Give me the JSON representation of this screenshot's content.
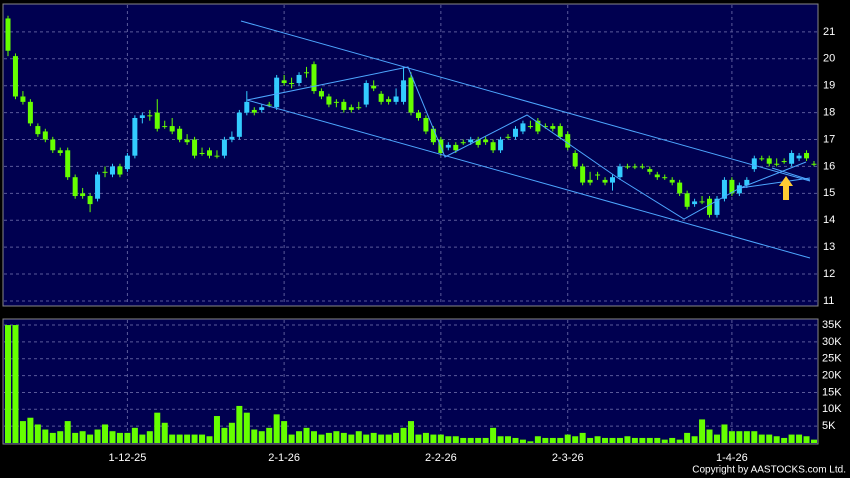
{
  "chart_data": {
    "type": "candlestick",
    "categories": [
      null,
      null,
      null,
      null,
      null,
      null,
      null,
      null,
      null,
      null,
      null,
      null,
      null,
      null,
      null,
      null,
      "1-12-25",
      null,
      null,
      null,
      null,
      null,
      null,
      null,
      null,
      null,
      null,
      null,
      null,
      null,
      null,
      null,
      null,
      null,
      null,
      null,
      null,
      "2-1-26",
      null,
      null,
      null,
      null,
      null,
      null,
      null,
      null,
      null,
      null,
      null,
      null,
      null,
      null,
      null,
      null,
      null,
      null,
      null,
      null,
      "2-2-26",
      null,
      null,
      null,
      null,
      null,
      null,
      null,
      null,
      null,
      null,
      null,
      null,
      null,
      null,
      null,
      null,
      "2-3-26",
      null,
      null,
      null,
      null,
      null,
      null,
      null,
      null,
      null,
      null,
      null,
      null,
      null,
      null,
      null,
      null,
      null,
      null,
      null,
      null,
      null,
      "1-4-26",
      null,
      null,
      null,
      null,
      null,
      null,
      null,
      null,
      null,
      null,
      null
    ],
    "open": [
      21.5,
      20.1,
      18.6,
      18.4,
      17.5,
      17.3,
      17.0,
      16.6,
      16.6,
      15.6,
      15.0,
      14.9,
      14.8,
      15.8,
      15.7,
      16.0,
      15.9,
      16.4,
      17.8,
      17.9,
      18.0,
      17.5,
      17.5,
      17.4,
      17.0,
      17.0,
      16.5,
      16.6,
      16.4,
      16.4,
      17.0,
      17.1,
      18.0,
      18.1,
      18.1,
      18.3,
      18.2,
      19.2,
      19.1,
      19.1,
      19.5,
      19.8,
      18.8,
      18.6,
      18.4,
      18.4,
      18.2,
      18.2,
      18.3,
      19.0,
      18.7,
      18.5,
      18.4,
      18.4,
      19.3,
      18.0,
      17.8,
      17.4,
      17.0,
      16.7,
      16.8,
      16.9,
      16.9,
      17.0,
      17.0,
      16.9,
      16.6,
      17.1,
      17.1,
      17.3,
      17.5,
      17.7,
      17.5,
      17.5,
      17.5,
      17.2,
      16.5,
      16.0,
      15.5,
      15.7,
      15.5,
      15.4,
      15.6,
      16.0,
      16.0,
      16.0,
      15.9,
      15.7,
      15.6,
      15.5,
      15.4,
      15.0,
      14.6,
      14.7,
      14.8,
      14.2,
      14.8,
      15.5,
      15.0,
      15.3,
      15.9,
      16.3,
      16.3,
      16.1,
      16.2,
      16.1,
      16.3,
      16.5,
      16.1
    ],
    "high": [
      21.6,
      20.2,
      18.8,
      18.5,
      17.6,
      17.4,
      17.1,
      16.7,
      16.7,
      15.7,
      15.2,
      15.0,
      15.8,
      16.0,
      16.1,
      16.1,
      16.5,
      17.9,
      18.0,
      18.1,
      18.5,
      17.7,
      17.8,
      17.5,
      17.2,
      17.1,
      16.7,
      16.7,
      16.6,
      17.1,
      17.3,
      18.1,
      18.8,
      18.2,
      18.3,
      18.4,
      19.4,
      19.4,
      19.3,
      19.5,
      19.7,
      19.9,
      18.9,
      18.7,
      18.5,
      18.5,
      18.3,
      18.4,
      19.2,
      19.2,
      18.8,
      18.6,
      18.9,
      19.7,
      19.5,
      18.1,
      17.9,
      17.5,
      17.1,
      16.9,
      16.9,
      17.0,
      17.1,
      17.1,
      17.1,
      17.0,
      17.1,
      17.2,
      17.5,
      17.7,
      17.7,
      17.8,
      17.6,
      17.6,
      17.6,
      17.3,
      16.6,
      16.1,
      15.8,
      15.8,
      15.6,
      15.7,
      16.1,
      16.1,
      16.1,
      16.1,
      16.0,
      15.8,
      15.7,
      15.6,
      15.5,
      15.1,
      14.8,
      14.9,
      14.9,
      14.9,
      15.6,
      15.6,
      15.4,
      15.6,
      16.4,
      16.4,
      16.4,
      16.3,
      16.3,
      16.6,
      16.5,
      16.6,
      16.2
    ],
    "low": [
      20.1,
      18.5,
      18.3,
      17.5,
      17.1,
      16.9,
      16.5,
      16.4,
      15.5,
      14.8,
      14.8,
      14.3,
      14.7,
      15.6,
      15.6,
      15.6,
      15.8,
      16.3,
      17.6,
      17.7,
      17.3,
      17.4,
      17.2,
      16.9,
      16.8,
      16.3,
      16.4,
      16.3,
      16.3,
      16.3,
      16.9,
      17.0,
      17.9,
      17.9,
      18.0,
      18.2,
      18.1,
      19.0,
      18.9,
      19.0,
      19.3,
      18.7,
      18.5,
      18.2,
      18.2,
      18.0,
      18.0,
      18.1,
      18.2,
      18.8,
      18.3,
      18.3,
      18.3,
      18.3,
      17.9,
      17.7,
      17.2,
      16.8,
      16.4,
      16.6,
      16.5,
      16.8,
      16.8,
      16.7,
      16.8,
      16.5,
      16.5,
      17.0,
      17.0,
      17.2,
      17.4,
      17.2,
      17.4,
      17.3,
      17.0,
      16.6,
      15.9,
      15.3,
      15.3,
      15.5,
      15.3,
      15.1,
      15.5,
      15.9,
      15.9,
      15.9,
      15.7,
      15.5,
      15.5,
      15.3,
      14.9,
      14.4,
      14.5,
      14.6,
      14.1,
      14.1,
      14.7,
      14.9,
      14.9,
      15.2,
      15.8,
      16.2,
      16.0,
      16.0,
      16.1,
      16.0,
      16.2,
      16.2,
      16.0
    ],
    "close": [
      20.3,
      18.6,
      18.4,
      17.6,
      17.2,
      17.0,
      16.6,
      16.5,
      15.6,
      14.9,
      14.9,
      14.6,
      15.7,
      15.8,
      16.0,
      15.7,
      16.4,
      17.8,
      17.9,
      17.9,
      17.4,
      17.5,
      17.3,
      17.0,
      16.9,
      16.4,
      16.5,
      16.4,
      16.4,
      17.0,
      17.1,
      18.0,
      18.4,
      18.0,
      18.2,
      18.3,
      19.3,
      19.1,
      19.1,
      19.4,
      19.5,
      18.8,
      18.6,
      18.3,
      18.4,
      18.1,
      18.1,
      18.2,
      19.1,
      18.9,
      18.4,
      18.4,
      18.6,
      19.2,
      18.0,
      17.8,
      17.3,
      16.9,
      16.5,
      16.8,
      16.6,
      16.9,
      17.0,
      16.8,
      16.9,
      16.6,
      17.0,
      17.1,
      17.4,
      17.6,
      17.5,
      17.3,
      17.5,
      17.4,
      17.1,
      16.7,
      16.0,
      15.4,
      15.4,
      15.7,
      15.4,
      15.6,
      16.0,
      16.0,
      16.0,
      16.0,
      15.8,
      15.6,
      15.6,
      15.4,
      15.0,
      14.5,
      14.7,
      14.7,
      14.2,
      14.8,
      15.5,
      15.0,
      15.3,
      15.5,
      16.3,
      16.3,
      16.1,
      16.1,
      16.2,
      16.5,
      16.4,
      16.3,
      16.1
    ],
    "up_color": "#33ccff",
    "down_color": "#66ff00",
    "ylim": [
      10.85,
      22.0
    ],
    "yticks": [
      11,
      12,
      13,
      14,
      15,
      16,
      17,
      18,
      19,
      20,
      21
    ],
    "grid": true,
    "volume": {
      "color": "#66ff00",
      "values": [
        35000,
        35000,
        6500,
        7500,
        5500,
        4000,
        3000,
        3500,
        6500,
        3000,
        3500,
        2500,
        4000,
        5500,
        3500,
        3000,
        3000,
        4500,
        2500,
        3500,
        9000,
        6000,
        2500,
        2500,
        2500,
        2500,
        2500,
        2000,
        8000,
        4500,
        6000,
        11000,
        9000,
        4000,
        3500,
        4500,
        8500,
        6500,
        2500,
        3500,
        4500,
        3500,
        2500,
        3000,
        3500,
        3000,
        2500,
        3500,
        2500,
        3000,
        2500,
        2500,
        3000,
        4500,
        6500,
        2500,
        3000,
        2500,
        2500,
        2000,
        2000,
        1500,
        1500,
        1500,
        1500,
        4500,
        2000,
        2000,
        1500,
        1000,
        500,
        2000,
        1500,
        1500,
        1500,
        2500,
        2000,
        3000,
        1500,
        2000,
        1500,
        1500,
        1500,
        2000,
        1500,
        1500,
        1500,
        1500,
        1000,
        1500,
        1000,
        3000,
        2000,
        7000,
        4000,
        2500,
        5500,
        3500,
        3500,
        3500,
        3500,
        2500,
        2500,
        2000,
        1500,
        2500,
        2500,
        2000,
        1000
      ],
      "ylim": [
        0,
        36500
      ],
      "yticks": [
        {
          "value": 5000,
          "label": "5K"
        },
        {
          "value": 10000,
          "label": "10K"
        },
        {
          "value": 15000,
          "label": "15K"
        },
        {
          "value": 20000,
          "label": "20K"
        },
        {
          "value": 25000,
          "label": "25K"
        },
        {
          "value": 30000,
          "label": "30K"
        },
        {
          "value": 35000,
          "label": "35K"
        }
      ]
    },
    "source": "Copyright by AASTOCKS.com Ltd."
  }
}
